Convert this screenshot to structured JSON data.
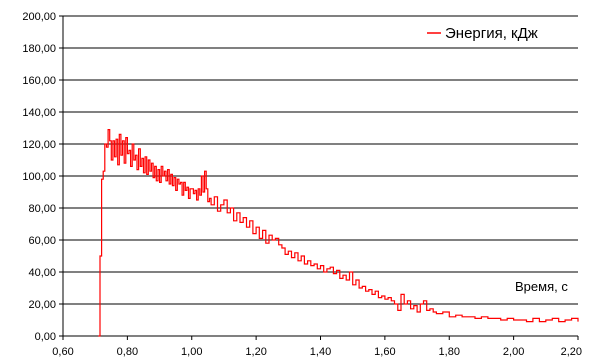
{
  "chart_data": {
    "type": "line",
    "title": "",
    "xlabel": "Время, с",
    "ylabel": "",
    "xlim": [
      0.6,
      2.2
    ],
    "ylim": [
      0,
      200
    ],
    "xticks": [
      "0,60",
      "0,80",
      "1,00",
      "1,20",
      "1,40",
      "1,60",
      "1,80",
      "2,00",
      "2,20"
    ],
    "xtick_values": [
      0.6,
      0.8,
      1.0,
      1.2,
      1.4,
      1.6,
      1.8,
      2.0,
      2.2
    ],
    "yticks": [
      "0,00",
      "20,00",
      "40,00",
      "60,00",
      "80,00",
      "100,00",
      "120,00",
      "140,00",
      "160,00",
      "180,00",
      "200,00"
    ],
    "ytick_values": [
      0,
      20,
      40,
      60,
      80,
      100,
      120,
      140,
      160,
      180,
      200
    ],
    "grid": "horizontal",
    "legend": "top-right",
    "series": [
      {
        "name": "Энергия, кДж",
        "color": "#ff0000",
        "x": [
          0.71,
          0.715,
          0.72,
          0.725,
          0.73,
          0.735,
          0.74,
          0.745,
          0.75,
          0.755,
          0.76,
          0.765,
          0.77,
          0.775,
          0.78,
          0.785,
          0.79,
          0.795,
          0.8,
          0.805,
          0.81,
          0.815,
          0.82,
          0.825,
          0.83,
          0.835,
          0.84,
          0.845,
          0.85,
          0.855,
          0.86,
          0.865,
          0.87,
          0.875,
          0.88,
          0.885,
          0.89,
          0.895,
          0.9,
          0.905,
          0.91,
          0.915,
          0.92,
          0.925,
          0.93,
          0.935,
          0.94,
          0.945,
          0.95,
          0.955,
          0.96,
          0.965,
          0.97,
          0.975,
          0.98,
          0.985,
          0.99,
          0.995,
          1.0,
          1.005,
          1.01,
          1.015,
          1.02,
          1.025,
          1.03,
          1.035,
          1.04,
          1.045,
          1.05,
          1.055,
          1.06,
          1.07,
          1.08,
          1.09,
          1.1,
          1.11,
          1.12,
          1.13,
          1.14,
          1.15,
          1.16,
          1.17,
          1.18,
          1.19,
          1.2,
          1.21,
          1.22,
          1.23,
          1.24,
          1.25,
          1.26,
          1.27,
          1.28,
          1.29,
          1.3,
          1.31,
          1.32,
          1.33,
          1.34,
          1.35,
          1.36,
          1.37,
          1.38,
          1.39,
          1.4,
          1.41,
          1.42,
          1.43,
          1.44,
          1.45,
          1.46,
          1.47,
          1.48,
          1.49,
          1.5,
          1.51,
          1.52,
          1.53,
          1.54,
          1.55,
          1.56,
          1.57,
          1.58,
          1.59,
          1.6,
          1.61,
          1.62,
          1.63,
          1.64,
          1.65,
          1.66,
          1.67,
          1.68,
          1.69,
          1.7,
          1.71,
          1.72,
          1.73,
          1.74,
          1.75,
          1.76,
          1.78,
          1.8,
          1.82,
          1.84,
          1.86,
          1.88,
          1.9,
          1.92,
          1.94,
          1.96,
          1.98,
          2.0,
          2.02,
          2.04,
          2.06,
          2.08,
          2.1,
          2.12,
          2.14,
          2.16,
          2.18,
          2.2
        ],
        "y": [
          0,
          50,
          98,
          103,
          120,
          118,
          129,
          122,
          110,
          122,
          112,
          123,
          107,
          126,
          113,
          122,
          108,
          124,
          114,
          116,
          106,
          120,
          110,
          113,
          104,
          117,
          106,
          111,
          102,
          112,
          101,
          110,
          103,
          108,
          99,
          106,
          97,
          104,
          96,
          106,
          100,
          103,
          97,
          104,
          95,
          101,
          94,
          99,
          91,
          98,
          95,
          96,
          88,
          96,
          91,
          93,
          86,
          92,
          92,
          89,
          91,
          85,
          92,
          88,
          100,
          90,
          103,
          92,
          84,
          86,
          82,
          87,
          78,
          82,
          85,
          77,
          80,
          72,
          77,
          71,
          74,
          68,
          72,
          64,
          68,
          61,
          66,
          58,
          63,
          60,
          61,
          57,
          55,
          51,
          53,
          49,
          52,
          47,
          50,
          45,
          47,
          44,
          45,
          42,
          44,
          40,
          42,
          43,
          39,
          41,
          36,
          38,
          35,
          40,
          32,
          35,
          30,
          31,
          28,
          29,
          26,
          28,
          24,
          25,
          23,
          24,
          22,
          20,
          16,
          26,
          20,
          22,
          17,
          19,
          15,
          20,
          22,
          16,
          17,
          15,
          14,
          15,
          12,
          13,
          12,
          12,
          11,
          12,
          11,
          11,
          10,
          11,
          10,
          10,
          9,
          11,
          9,
          10,
          11,
          9,
          10,
          11,
          9
        ]
      }
    ]
  }
}
